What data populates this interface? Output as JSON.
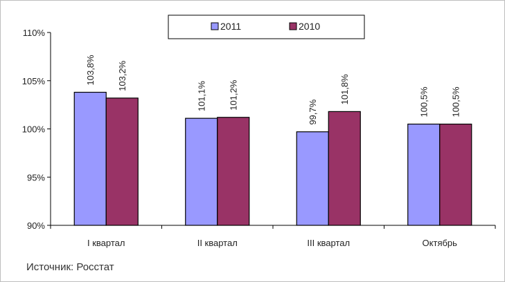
{
  "chart_data": {
    "type": "bar",
    "categories": [
      "I квартал",
      "II квартал",
      "III квартал",
      "Октябрь"
    ],
    "series": [
      {
        "name": "2011",
        "color": "#9999ff",
        "values": [
          103.8,
          101.1,
          99.7,
          100.5
        ],
        "labels": [
          "103,8%",
          "101,1%",
          "99,7%",
          "100,5%"
        ]
      },
      {
        "name": "2010",
        "color": "#993366",
        "values": [
          103.2,
          101.2,
          101.8,
          100.5
        ],
        "labels": [
          "103,2%",
          "101,2%",
          "101,8%",
          "100,5%"
        ]
      }
    ],
    "ylim": [
      90,
      110
    ],
    "yticks": [
      90,
      95,
      100,
      105,
      110
    ],
    "ytick_labels": [
      "90%",
      "95%",
      "100%",
      "105%",
      "110%"
    ],
    "grid": false,
    "legend_position": "top-center",
    "title": "",
    "xlabel": "",
    "ylabel": ""
  },
  "source_text": "Источник: Росстат"
}
